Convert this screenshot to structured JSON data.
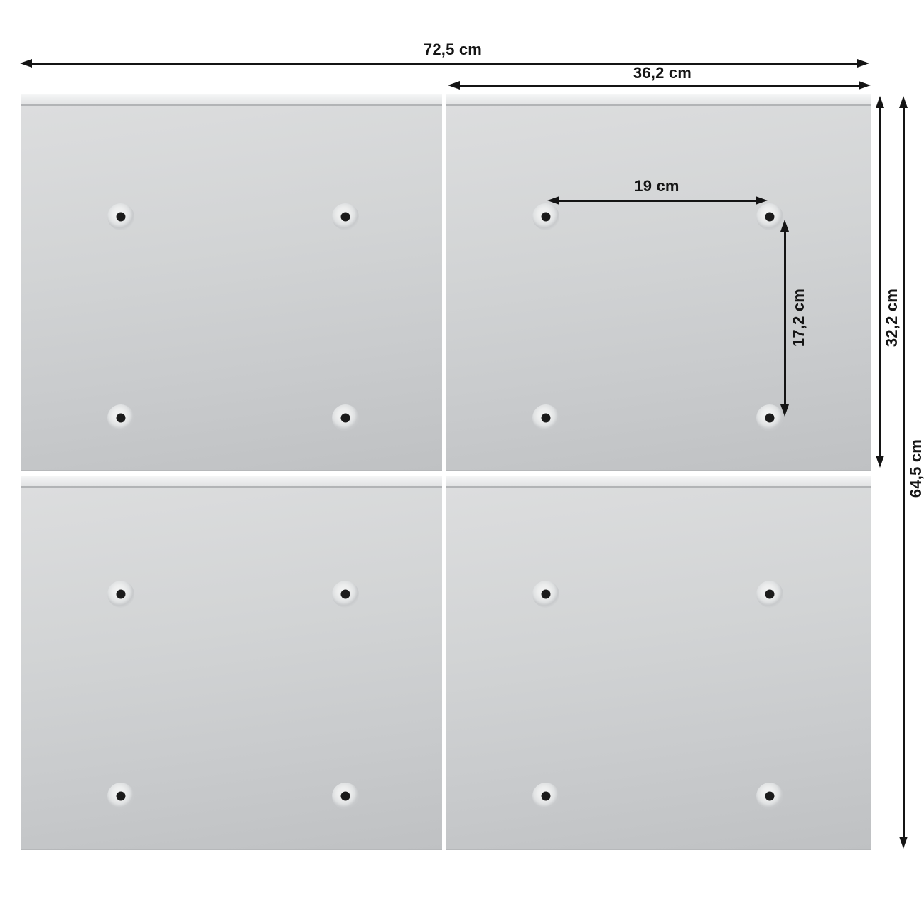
{
  "diagram": {
    "type": "product-dimension-diagram",
    "units": "cm",
    "colors": {
      "background": "#ffffff",
      "panel_face": "#cdcfd1",
      "panel_rail": "#eaebec",
      "arrow": "#141414",
      "foot_dot": "#1b1b1b"
    },
    "panels": {
      "count": 4,
      "layout": "2x2",
      "feet_per_panel": 4
    },
    "dimensions": {
      "total_width": {
        "label": "72,5 cm"
      },
      "panel_width": {
        "label": "36,2 cm"
      },
      "foot_spacing_horizontal": {
        "label": "19 cm"
      },
      "foot_spacing_vertical": {
        "label": "17,2 cm"
      },
      "panel_height": {
        "label": "32,2 cm"
      },
      "total_height": {
        "label": "64,5 cm"
      }
    }
  }
}
